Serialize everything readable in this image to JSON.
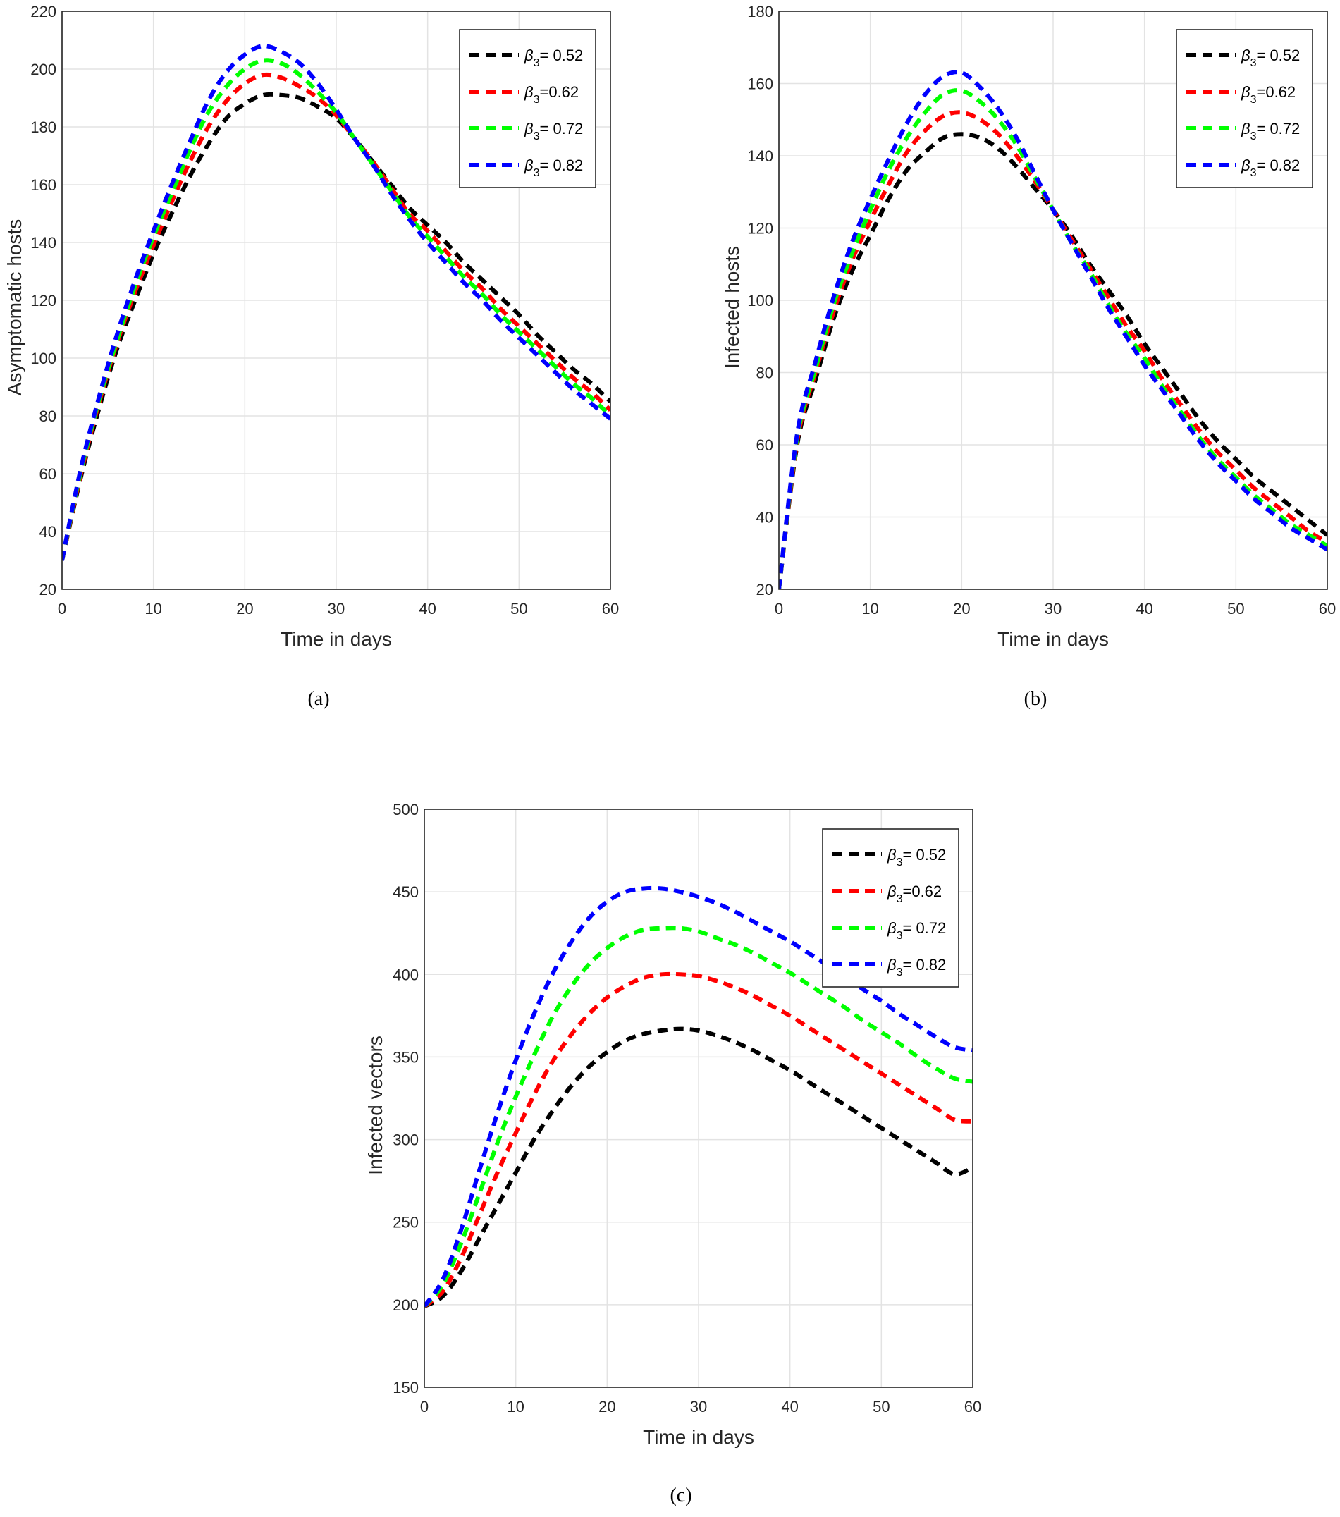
{
  "chart_data": [
    {
      "panel": "(a)",
      "type": "line",
      "xlabel": "Time in days",
      "ylabel": "Asymptomatic  hosts",
      "xlim": [
        0,
        60
      ],
      "ylim": [
        20,
        220
      ],
      "xticks": [
        0,
        10,
        20,
        30,
        40,
        50,
        60
      ],
      "yticks": [
        20,
        40,
        60,
        80,
        100,
        120,
        140,
        160,
        180,
        200,
        220
      ],
      "grid": true,
      "legend_position": "top-right",
      "x": [
        0,
        2,
        4,
        6,
        8,
        10,
        12,
        14,
        16,
        18,
        20,
        22,
        24,
        26,
        28,
        30,
        32,
        34,
        36,
        38,
        40,
        42,
        44,
        46,
        48,
        50,
        52,
        54,
        56,
        58,
        60
      ],
      "series": [
        {
          "name": "β3 = 0.52",
          "label_main": "β",
          "label_sub": "3",
          "label_rest": "= 0.52",
          "color": "#000000",
          "values": [
            30,
            58,
            82,
            103,
            120,
            136,
            150,
            163,
            174,
            183,
            188,
            191,
            191,
            190,
            187,
            183,
            176,
            168,
            160,
            152,
            146,
            140,
            133,
            127,
            121,
            115,
            108,
            102,
            96,
            91,
            85
          ]
        },
        {
          "name": "β3=0.62",
          "label_main": "β",
          "label_sub": "3",
          "label_rest": "=0.62",
          "color": "#ff0000",
          "values": [
            30,
            59,
            84,
            105,
            123,
            139,
            154,
            168,
            180,
            189,
            195,
            198,
            197,
            194,
            190,
            184,
            176,
            168,
            159,
            150,
            144,
            137,
            130,
            124,
            117,
            111,
            105,
            99,
            93,
            88,
            82
          ]
        },
        {
          "name": "β3 = 0.72",
          "label_main": "β",
          "label_sub": "3",
          "label_rest": "= 0.72",
          "color": "#00ff00",
          "values": [
            30,
            60,
            85,
            106,
            125,
            142,
            157,
            172,
            185,
            194,
            200,
            203,
            202,
            198,
            192,
            185,
            176,
            167,
            158,
            149,
            142,
            135,
            128,
            122,
            115,
            109,
            103,
            97,
            91,
            86,
            80
          ]
        },
        {
          "name": "β3 = 0.82",
          "label_main": "β",
          "label_sub": "3",
          "label_rest": "= 0.82",
          "color": "#0000ff",
          "values": [
            30,
            61,
            86,
            108,
            127,
            144,
            160,
            175,
            189,
            199,
            205,
            208,
            206,
            202,
            195,
            186,
            176,
            167,
            157,
            148,
            140,
            133,
            126,
            120,
            113,
            107,
            101,
            95,
            89,
            84,
            79
          ]
        }
      ]
    },
    {
      "panel": "(b)",
      "type": "line",
      "xlabel": "Time in days",
      "ylabel": "Infected hosts",
      "xlim": [
        0,
        60
      ],
      "ylim": [
        20,
        180
      ],
      "xticks": [
        0,
        10,
        20,
        30,
        40,
        50,
        60
      ],
      "yticks": [
        20,
        40,
        60,
        80,
        100,
        120,
        140,
        160,
        180
      ],
      "grid": true,
      "legend_position": "top-right",
      "x": [
        0,
        2,
        4,
        6,
        8,
        10,
        12,
        14,
        16,
        18,
        20,
        22,
        24,
        26,
        28,
        30,
        32,
        34,
        36,
        38,
        40,
        42,
        44,
        46,
        48,
        50,
        52,
        54,
        56,
        58,
        60
      ],
      "series": [
        {
          "name": "β3 = 0.52",
          "label_main": "β",
          "label_sub": "3",
          "label_rest": "= 0.52",
          "color": "#000000",
          "values": [
            20,
            60,
            78,
            95,
            108,
            118,
            128,
            136,
            141,
            145,
            146,
            145,
            142,
            137,
            131,
            125,
            118,
            110,
            103,
            96,
            88,
            81,
            74,
            67,
            61,
            56,
            51,
            47,
            43,
            39,
            35
          ]
        },
        {
          "name": "β3=0.62",
          "label_main": "β",
          "label_sub": "3",
          "label_rest": "=0.62",
          "color": "#ff0000",
          "values": [
            20,
            61,
            80,
            97,
            111,
            122,
            132,
            141,
            147,
            151,
            152,
            150,
            146,
            140,
            133,
            125,
            117,
            109,
            101,
            93,
            86,
            78,
            71,
            64,
            58,
            53,
            48,
            44,
            40,
            36,
            33
          ]
        },
        {
          "name": "β3 = 0.72",
          "label_main": "β",
          "label_sub": "3",
          "label_rest": "= 0.72",
          "color": "#00ff00",
          "values": [
            20,
            62,
            81,
            99,
            113,
            125,
            136,
            145,
            152,
            157,
            158,
            155,
            150,
            143,
            134,
            125,
            116,
            108,
            99,
            91,
            84,
            76,
            69,
            62,
            56,
            51,
            46,
            42,
            38,
            35,
            32
          ]
        },
        {
          "name": "β3 = 0.82",
          "label_main": "β",
          "label_sub": "3",
          "label_rest": "= 0.82",
          "color": "#0000ff",
          "values": [
            20,
            63,
            83,
            101,
            116,
            128,
            139,
            149,
            157,
            162,
            163,
            159,
            153,
            145,
            135,
            125,
            116,
            107,
            98,
            90,
            82,
            75,
            68,
            61,
            55,
            50,
            45,
            41,
            37,
            34,
            31
          ]
        }
      ]
    },
    {
      "panel": "(c)",
      "type": "line",
      "xlabel": "Time in days",
      "ylabel": "Infected vectors",
      "xlim": [
        0,
        60
      ],
      "ylim": [
        150,
        500
      ],
      "xticks": [
        0,
        10,
        20,
        30,
        40,
        50,
        60
      ],
      "yticks": [
        150,
        200,
        250,
        300,
        350,
        400,
        450,
        500
      ],
      "grid": true,
      "legend_position": "top-right",
      "x": [
        0,
        2,
        4,
        6,
        8,
        10,
        12,
        14,
        16,
        18,
        20,
        22,
        24,
        26,
        28,
        30,
        32,
        34,
        36,
        38,
        40,
        42,
        44,
        46,
        48,
        50,
        52,
        54,
        56,
        58,
        60
      ],
      "series": [
        {
          "name": "β3 = 0.52",
          "label_main": "β",
          "label_sub": "3",
          "label_rest": "= 0.52",
          "color": "#000000",
          "values": [
            199,
            205,
            220,
            240,
            260,
            280,
            300,
            317,
            332,
            344,
            353,
            360,
            364,
            366,
            367,
            366,
            363,
            359,
            354,
            348,
            342,
            335,
            328,
            321,
            314,
            307,
            300,
            293,
            286,
            279,
            283
          ]
        },
        {
          "name": "β3=0.62",
          "label_main": "β",
          "label_sub": "3",
          "label_rest": "=0.62",
          "color": "#ff0000",
          "values": [
            199,
            208,
            228,
            254,
            280,
            304,
            327,
            347,
            363,
            376,
            386,
            393,
            398,
            400,
            400,
            399,
            396,
            392,
            387,
            381,
            375,
            368,
            361,
            354,
            347,
            340,
            333,
            326,
            319,
            312,
            311
          ]
        },
        {
          "name": "β3 = 0.72",
          "label_main": "β",
          "label_sub": "3",
          "label_rest": "= 0.72",
          "color": "#00ff00",
          "values": [
            199,
            212,
            237,
            267,
            298,
            326,
            351,
            374,
            392,
            406,
            416,
            423,
            427,
            428,
            428,
            426,
            422,
            418,
            413,
            407,
            401,
            394,
            387,
            380,
            372,
            365,
            358,
            350,
            343,
            337,
            335
          ]
        },
        {
          "name": "β3 = 0.82",
          "label_main": "β",
          "label_sub": "3",
          "label_rest": "= 0.82",
          "color": "#0000ff",
          "values": [
            199,
            215,
            245,
            281,
            316,
            348,
            376,
            400,
            419,
            434,
            444,
            450,
            452,
            452,
            450,
            447,
            443,
            438,
            432,
            426,
            420,
            413,
            406,
            399,
            391,
            384,
            376,
            369,
            362,
            356,
            354
          ]
        }
      ]
    }
  ]
}
